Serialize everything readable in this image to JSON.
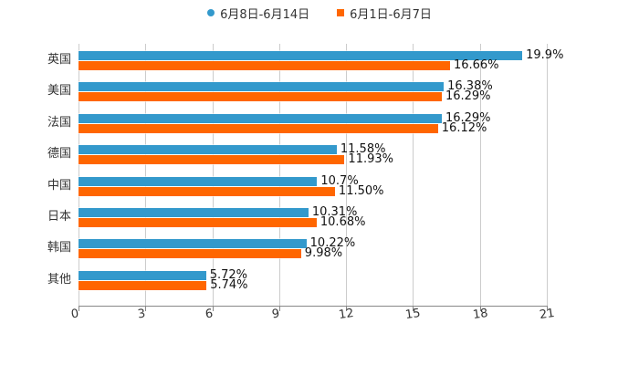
{
  "legend": [
    {
      "label": "6月8日-6月14日",
      "color": "#3399cc",
      "marker": "circle"
    },
    {
      "label": "6月1日-6月7日",
      "color": "#ff6600",
      "marker": "square"
    }
  ],
  "chart_data": {
    "type": "bar",
    "orientation": "horizontal",
    "title": "",
    "xlabel": "",
    "ylabel": "",
    "categories": [
      "英国",
      "美国",
      "法国",
      "德国",
      "中国",
      "日本",
      "韩国",
      "其他"
    ],
    "series": [
      {
        "name": "6月8日-6月14日",
        "color": "#3399cc",
        "values": [
          19.9,
          16.38,
          16.29,
          11.58,
          10.7,
          10.31,
          10.22,
          5.72
        ],
        "labels": [
          "19.9%",
          "16.38%",
          "16.29%",
          "11.58%",
          "10.7%",
          "10.31%",
          "10.22%",
          "5.72%"
        ]
      },
      {
        "name": "6月1日-6月7日",
        "color": "#ff6600",
        "values": [
          16.66,
          16.29,
          16.12,
          11.93,
          11.5,
          10.68,
          9.98,
          5.74
        ],
        "labels": [
          "16.66%",
          "16.29%",
          "16.12%",
          "11.93%",
          "11.50%",
          "10.68%",
          "9.98%",
          "5.74%"
        ]
      }
    ],
    "xlim": [
      0,
      21
    ],
    "xticks": [
      "0",
      "3",
      "6",
      "9",
      "12",
      "15",
      "18",
      "21"
    ],
    "grid": true,
    "legend_position": "top"
  }
}
